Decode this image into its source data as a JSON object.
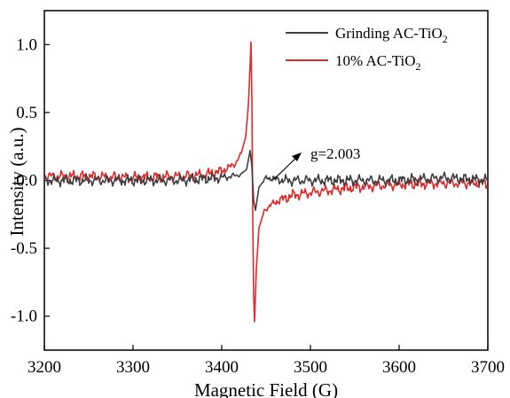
{
  "chart_data": {
    "type": "line",
    "xlabel": "Magnetic Field (G)",
    "ylabel": "Intensity (a.u.)",
    "xlim": [
      3200,
      3700
    ],
    "ylim": [
      -1.25,
      1.25
    ],
    "xticks": [
      "3200",
      "3300",
      "3400",
      "3500",
      "3600",
      "3700"
    ],
    "yticks": [
      "1.0",
      "0.5",
      "0.0",
      "-0.5",
      "-1.0"
    ],
    "legend_position": "top-right",
    "grid": false,
    "series": [
      {
        "name_main": "Grinding AC-TiO",
        "name_sub": "2",
        "color": "#404040",
        "x": [
          3200,
          3250,
          3300,
          3350,
          3400,
          3420,
          3428,
          3432,
          3434,
          3436,
          3438,
          3442,
          3450,
          3470,
          3500,
          3550,
          3600,
          3650,
          3700
        ],
        "y": [
          0.0,
          0.0,
          0.0,
          0.0,
          0.02,
          0.04,
          0.08,
          0.22,
          0.1,
          -0.15,
          -0.22,
          -0.05,
          0.02,
          0.0,
          0.0,
          0.0,
          0.0,
          0.02,
          0.0
        ]
      },
      {
        "name_main": "10% AC-TiO",
        "name_sub": "2",
        "color": "#e02a2a",
        "x": [
          3200,
          3250,
          3300,
          3350,
          3380,
          3400,
          3415,
          3422,
          3427,
          3430,
          3432,
          3433,
          3434,
          3435,
          3436,
          3437,
          3439,
          3442,
          3448,
          3460,
          3480,
          3500,
          3550,
          3600,
          3650,
          3700
        ],
        "y": [
          0.03,
          0.03,
          0.02,
          0.03,
          0.04,
          0.07,
          0.12,
          0.2,
          0.32,
          0.55,
          0.85,
          1.02,
          0.6,
          -0.3,
          -0.85,
          -1.04,
          -0.65,
          -0.35,
          -0.22,
          -0.16,
          -0.11,
          -0.09,
          -0.05,
          -0.03,
          -0.02,
          -0.02
        ]
      }
    ],
    "annotation": {
      "text": "g=2.003",
      "x": 3470,
      "y": 0.27
    }
  }
}
